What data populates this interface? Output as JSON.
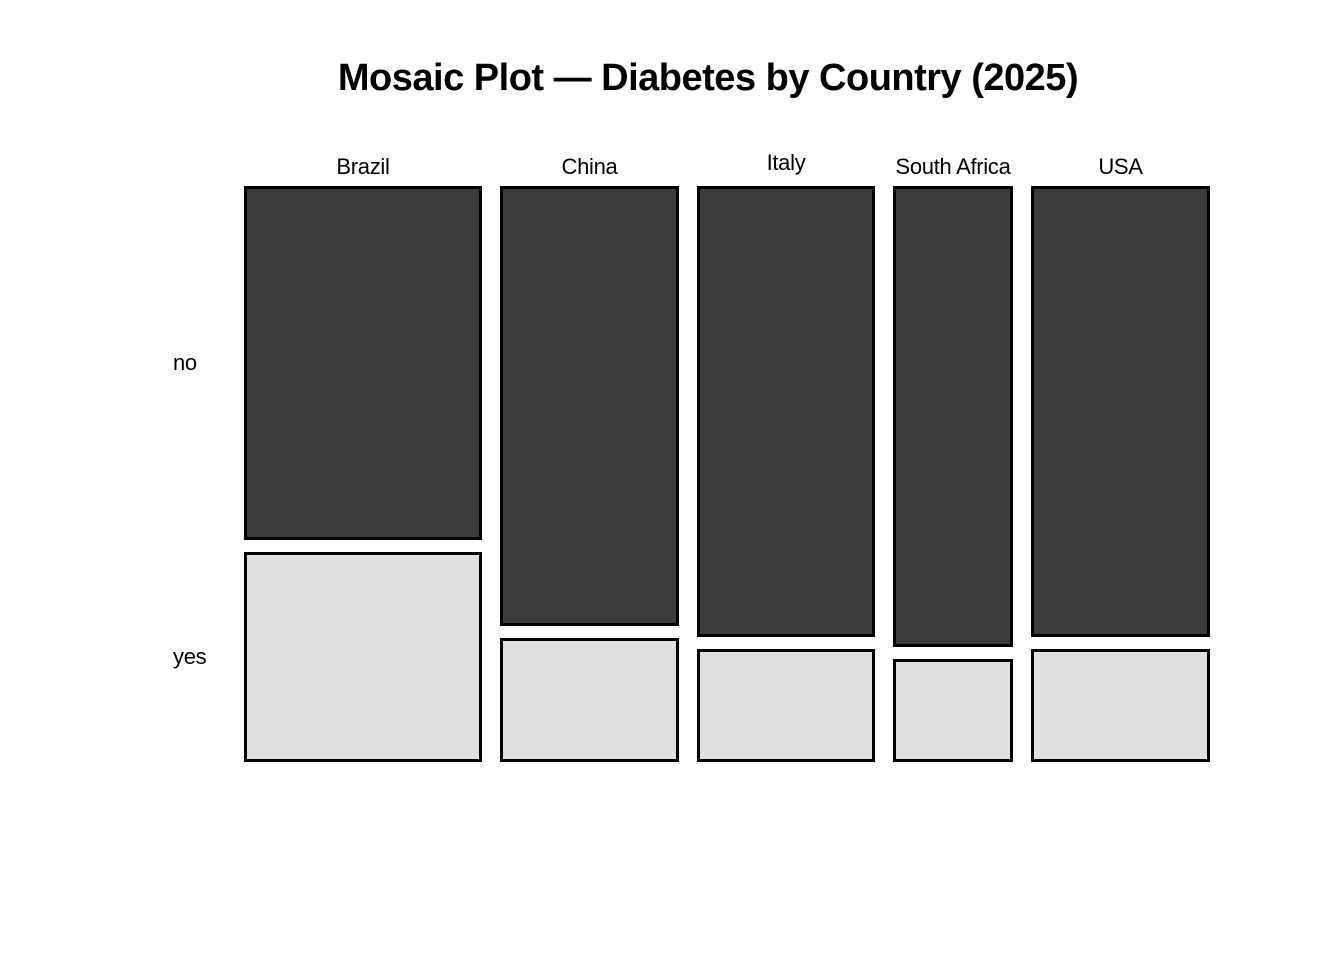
{
  "title": "Mosaic Plot — Diabetes by Country (2025)",
  "chart_data": {
    "type": "mosaic",
    "title": "Mosaic Plot — Diabetes by Country (2025)",
    "x_variable": "Country",
    "y_variable": "Diabetes",
    "x_axis_categories": [
      "Brazil",
      "China",
      "Italy",
      "South Africa",
      "USA"
    ],
    "y_axis_categories": [
      "no",
      "yes"
    ],
    "column_width_fractions": [
      0.266,
      0.2,
      0.199,
      0.134,
      0.2
    ],
    "series": [
      {
        "name": "no",
        "fractions": [
          0.627,
          0.78,
          0.8,
          0.817,
          0.8
        ]
      },
      {
        "name": "yes",
        "fractions": [
          0.373,
          0.22,
          0.2,
          0.183,
          0.2
        ]
      }
    ],
    "colors": {
      "no": "#3b3b3b",
      "yes": "#e0e0e0",
      "border": "#000000",
      "background": "#ffffff"
    },
    "legend": "none",
    "grid": "off"
  }
}
